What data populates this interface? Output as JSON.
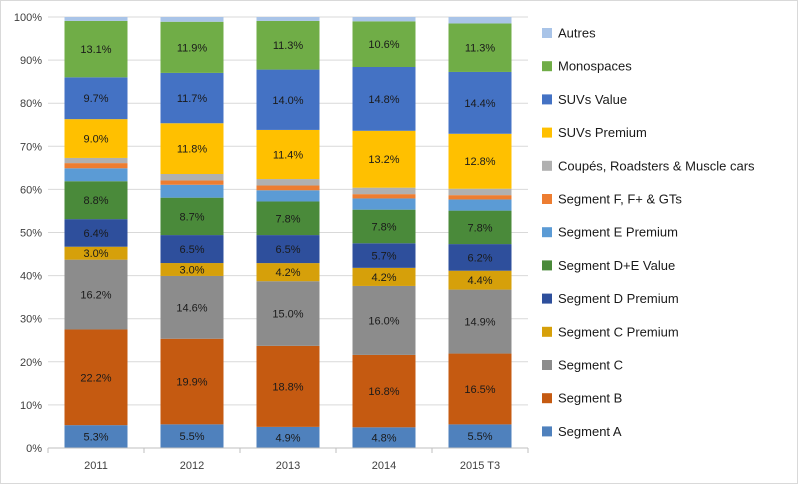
{
  "chart_data": {
    "type": "bar",
    "stacked": true,
    "percent_stacked": true,
    "categories": [
      "2011",
      "2012",
      "2013",
      "2014",
      "2015 T3"
    ],
    "ylim": [
      0,
      100
    ],
    "y_ticks": [
      "0%",
      "10%",
      "20%",
      "30%",
      "40%",
      "50%",
      "60%",
      "70%",
      "80%",
      "90%",
      "100%"
    ],
    "grid": true,
    "legend_position": "right",
    "series": [
      {
        "name": "Segment A",
        "color": "#4f81bd",
        "values": [
          5.3,
          5.5,
          4.9,
          4.8,
          5.5
        ],
        "labels": [
          "5.3%",
          "5.5%",
          "4.9%",
          "4.8%",
          "5.5%"
        ]
      },
      {
        "name": "Segment B",
        "color": "#c55a11",
        "values": [
          22.2,
          19.9,
          18.8,
          16.8,
          16.5
        ],
        "labels": [
          "22.2%",
          "19.9%",
          "18.8%",
          "16.8%",
          "16.5%"
        ]
      },
      {
        "name": "Segment C",
        "color": "#8c8c8c",
        "values": [
          16.2,
          14.6,
          15.0,
          16.0,
          14.9
        ],
        "labels": [
          "16.2%",
          "14.6%",
          "15.0%",
          "16.0%",
          "14.9%"
        ]
      },
      {
        "name": "Segment C Premium",
        "color": "#d6a00a",
        "values": [
          3.0,
          3.0,
          4.2,
          4.2,
          4.4
        ],
        "labels": [
          "3.0%",
          "3.0%",
          "4.2%",
          "4.2%",
          "4.4%"
        ]
      },
      {
        "name": "Segment D Premium",
        "color": "#2e4f9c",
        "values": [
          6.4,
          6.5,
          6.5,
          5.7,
          6.2
        ],
        "labels": [
          "6.4%",
          "6.5%",
          "6.5%",
          "5.7%",
          "6.2%"
        ]
      },
      {
        "name": "Segment D+E Value",
        "color": "#4a8a3a",
        "values": [
          8.8,
          8.7,
          7.8,
          7.8,
          7.8
        ],
        "labels": [
          "8.8%",
          "8.7%",
          "7.8%",
          "7.8%",
          "7.8%"
        ]
      },
      {
        "name": "Segment E Premium",
        "color": "#5b9bd5",
        "values": [
          3.0,
          3.0,
          2.6,
          2.6,
          2.6
        ],
        "labels": [
          "",
          "",
          "",
          "",
          ""
        ]
      },
      {
        "name": "Segment F, F+ & GTs",
        "color": "#ed7d31",
        "values": [
          1.2,
          1.0,
          1.1,
          1.0,
          1.0
        ],
        "labels": [
          "",
          "",
          "",
          "",
          ""
        ]
      },
      {
        "name": "Coupés, Roadsters & Muscle cars",
        "color": "#b0b0b0",
        "values": [
          1.2,
          1.5,
          1.5,
          1.5,
          1.5
        ],
        "labels": [
          "",
          "",
          "",
          "",
          ""
        ]
      },
      {
        "name": "SUVs Premium",
        "color": "#ffc000",
        "values": [
          9.0,
          11.8,
          11.4,
          13.2,
          12.8
        ],
        "labels": [
          "9.0%",
          "11.8%",
          "11.4%",
          "13.2%",
          "12.8%"
        ]
      },
      {
        "name": "SUVs Value",
        "color": "#4472c4",
        "values": [
          9.7,
          11.7,
          14.0,
          14.8,
          14.4
        ],
        "labels": [
          "9.7%",
          "11.7%",
          "14.0%",
          "14.8%",
          "14.4%"
        ]
      },
      {
        "name": "Monospaces",
        "color": "#70ad47",
        "values": [
          13.1,
          11.9,
          11.3,
          10.6,
          11.3
        ],
        "labels": [
          "13.1%",
          "11.9%",
          "11.3%",
          "10.6%",
          "11.3%"
        ]
      },
      {
        "name": "Autres",
        "color": "#a9c4e8",
        "values": [
          0.9,
          1.1,
          0.9,
          1.0,
          1.5
        ],
        "labels": [
          "",
          "",
          "",
          "",
          ""
        ]
      }
    ]
  }
}
